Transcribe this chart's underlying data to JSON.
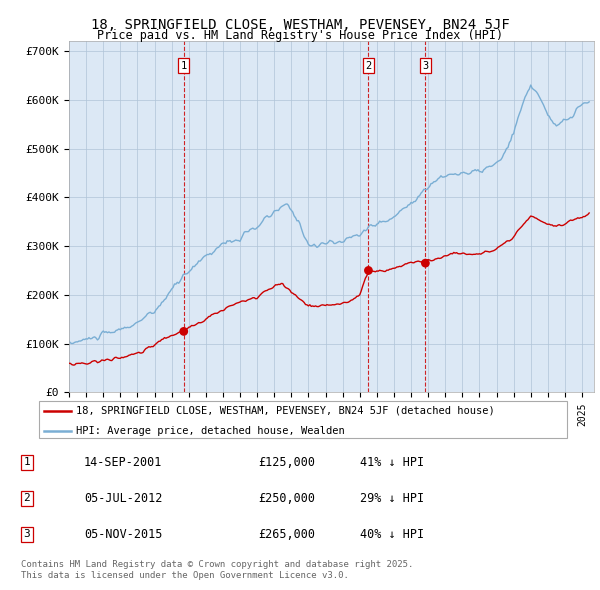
{
  "title_line1": "18, SPRINGFIELD CLOSE, WESTHAM, PEVENSEY, BN24 5JF",
  "title_line2": "Price paid vs. HM Land Registry's House Price Index (HPI)",
  "ylim": [
    0,
    720000
  ],
  "yticks": [
    0,
    100000,
    200000,
    300000,
    400000,
    500000,
    600000,
    700000
  ],
  "ytick_labels": [
    "£0",
    "£100K",
    "£200K",
    "£300K",
    "£400K",
    "£500K",
    "£600K",
    "£700K"
  ],
  "sale_dates_decimal": [
    2001.71,
    2012.51,
    2015.84
  ],
  "sale_prices": [
    125000,
    250000,
    265000
  ],
  "sale_labels": [
    "1",
    "2",
    "3"
  ],
  "sale_info": [
    {
      "label": "1",
      "date": "14-SEP-2001",
      "price": "£125,000",
      "pct": "41% ↓ HPI"
    },
    {
      "label": "2",
      "date": "05-JUL-2012",
      "price": "£250,000",
      "pct": "29% ↓ HPI"
    },
    {
      "label": "3",
      "date": "05-NOV-2015",
      "price": "£265,000",
      "pct": "40% ↓ HPI"
    }
  ],
  "legend_line1": "18, SPRINGFIELD CLOSE, WESTHAM, PEVENSEY, BN24 5JF (detached house)",
  "legend_line2": "HPI: Average price, detached house, Wealden",
  "footer_line1": "Contains HM Land Registry data © Crown copyright and database right 2025.",
  "footer_line2": "This data is licensed under the Open Government Licence v3.0.",
  "hpi_color": "#7aaed4",
  "sale_color": "#cc0000",
  "background_color": "#ffffff",
  "chart_bg": "#dce8f5",
  "grid_color": "#b0c4d8"
}
